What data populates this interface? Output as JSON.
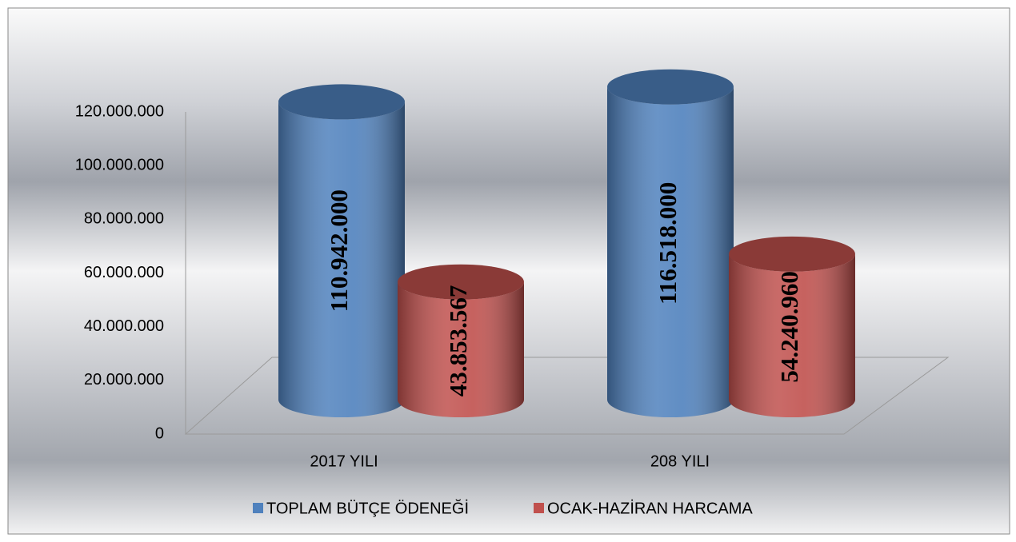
{
  "chart_data": {
    "type": "bar3d",
    "categories": [
      "2017 YILI",
      "208 YILI"
    ],
    "series": [
      {
        "name": "TOPLAM BÜTÇE ÖDENEĞİ",
        "color": "#4f81bd",
        "values": [
          110942000,
          116518000
        ],
        "value_labels": [
          "110.942.000",
          "116.518.000"
        ]
      },
      {
        "name": "OCAK-HAZİRAN HARCAMA",
        "color": "#c0504d",
        "values": [
          43853567,
          54240960
        ],
        "value_labels": [
          "43.853.567",
          "54.240.960"
        ]
      }
    ],
    "ylim": [
      0,
      120000000
    ],
    "yticks": [
      0,
      {
        "value": 20000000,
        "label": "20.000.000"
      },
      {
        "value": 40000000,
        "label": "40.000.000"
      },
      {
        "value": 60000000,
        "label": "60.000.000"
      },
      {
        "value": 80000000,
        "label": "80.000.000"
      },
      {
        "value": 100000000,
        "label": "100.000.000"
      },
      {
        "value": 120000000,
        "label": "120.000.000"
      }
    ],
    "legend": "bottom"
  }
}
